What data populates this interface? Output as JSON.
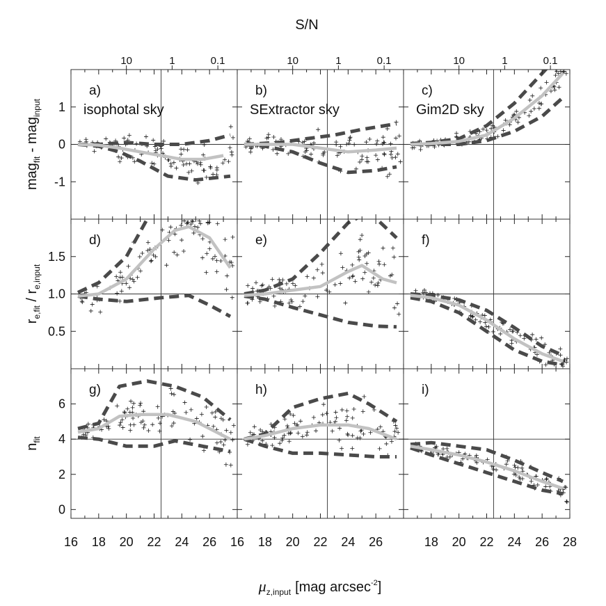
{
  "figure": {
    "top_title": "S/N",
    "xlabel": {
      "mu": "μ",
      "sub": "z,input",
      "unit": "[mag arcsec",
      "sup": "-2",
      "close": "]"
    },
    "ylabels": [
      {
        "a": "mag",
        "a_sub": "fit",
        "mid": " - mag",
        "b_sub": "input"
      },
      {
        "a": "r",
        "a_sub": "e,fit",
        "mid": " / r",
        "b_sub": "e,input"
      },
      {
        "a": "n",
        "a_sub": "fit",
        "mid": "",
        "b_sub": ""
      }
    ],
    "sn_ticks": [
      "10",
      "1",
      "0.1"
    ],
    "bottom_ticks": [
      "16",
      "18",
      "20",
      "22",
      "24",
      "26",
      "16",
      "18",
      "20",
      "22",
      "24",
      "26",
      "28"
    ],
    "row_ticks": [
      [
        "1",
        "0",
        "-1"
      ],
      [
        "1.5",
        "1.0",
        "0.5"
      ],
      [
        "6",
        "4",
        "2",
        "0"
      ]
    ]
  },
  "chart_data": {
    "type": "scatter",
    "layout": "3x3 panel grid, columns share x axis, rows share y axis",
    "x_axis": {
      "label": "μz,input [mag arcsec-2]",
      "range": [
        16,
        28
      ]
    },
    "top_axis": {
      "label": "S/N",
      "log_scale": true,
      "ticks": [
        {
          "value": "10",
          "at_mu": 20
        },
        {
          "value": "1",
          "at_mu": 23.3
        },
        {
          "value": "0.1",
          "at_mu": 26.6
        }
      ]
    },
    "rows": [
      {
        "ylabel": "magfit - maginput",
        "ylim": [
          -2,
          2
        ],
        "reference": 0,
        "yticks": [
          1,
          0,
          -1
        ]
      },
      {
        "ylabel": "re,fit / re,input",
        "ylim": [
          0,
          2
        ],
        "reference": 1,
        "yticks": [
          1.5,
          1.0,
          0.5
        ]
      },
      {
        "ylabel": "nfit",
        "ylim": [
          -0.5,
          8
        ],
        "reference": 4,
        "yticks": [
          6,
          4,
          2,
          0
        ]
      }
    ],
    "vertical_reference_mu": 22.5,
    "panels": [
      {
        "id": "a",
        "label": "a)",
        "caption": "isophotal sky",
        "row": 0,
        "col": 0,
        "median": [
          [
            16.5,
            0.0
          ],
          [
            18,
            -0.02
          ],
          [
            19.5,
            -0.1
          ],
          [
            21,
            -0.2
          ],
          [
            22.5,
            -0.3
          ],
          [
            24,
            -0.4
          ],
          [
            25.5,
            -0.4
          ],
          [
            27,
            -0.3
          ]
        ],
        "upper": [
          [
            16.5,
            0.0
          ],
          [
            18,
            0.0
          ],
          [
            20,
            0.05
          ],
          [
            22,
            0.0
          ],
          [
            24,
            0.0
          ],
          [
            26,
            0.1
          ],
          [
            27.5,
            0.25
          ]
        ],
        "lower": [
          [
            16.5,
            0.0
          ],
          [
            18,
            -0.05
          ],
          [
            19.5,
            -0.2
          ],
          [
            21,
            -0.45
          ],
          [
            23,
            -0.85
          ],
          [
            25,
            -0.95
          ],
          [
            27.5,
            -0.85
          ]
        ],
        "scatter_spread": 0.55,
        "center": [
          [
            16.5,
            0.0
          ],
          [
            27.5,
            -0.35
          ]
        ]
      },
      {
        "id": "b",
        "label": "b)",
        "caption": "SExtractor sky",
        "row": 0,
        "col": 1,
        "median": [
          [
            16.5,
            0.0
          ],
          [
            18,
            0.0
          ],
          [
            20,
            0.0
          ],
          [
            22,
            -0.1
          ],
          [
            24,
            -0.2
          ],
          [
            26,
            -0.15
          ],
          [
            27.5,
            -0.1
          ]
        ],
        "upper": [
          [
            16.5,
            0.0
          ],
          [
            19,
            0.05
          ],
          [
            21,
            0.15
          ],
          [
            23,
            0.25
          ],
          [
            25,
            0.4
          ],
          [
            27.5,
            0.55
          ]
        ],
        "lower": [
          [
            16.5,
            0.0
          ],
          [
            18,
            -0.05
          ],
          [
            20,
            -0.2
          ],
          [
            22,
            -0.5
          ],
          [
            24,
            -0.75
          ],
          [
            26,
            -0.7
          ],
          [
            27.5,
            -0.6
          ]
        ],
        "scatter_spread": 0.55,
        "center": [
          [
            16.5,
            0.0
          ],
          [
            27.5,
            -0.15
          ]
        ]
      },
      {
        "id": "c",
        "label": "c)",
        "caption": "Gim2D sky",
        "row": 0,
        "col": 2,
        "median": [
          [
            16.5,
            0.0
          ],
          [
            18,
            0.02
          ],
          [
            20,
            0.08
          ],
          [
            22,
            0.25
          ],
          [
            24,
            0.7
          ],
          [
            26,
            1.3
          ],
          [
            27.5,
            1.9
          ]
        ],
        "upper": [
          [
            16.5,
            0.02
          ],
          [
            18,
            0.05
          ],
          [
            20,
            0.15
          ],
          [
            22,
            0.5
          ],
          [
            24,
            1.1
          ],
          [
            26,
            1.9
          ],
          [
            27.5,
            2.5
          ]
        ],
        "lower": [
          [
            16.5,
            0.0
          ],
          [
            18,
            0.0
          ],
          [
            20,
            0.0
          ],
          [
            22,
            0.1
          ],
          [
            24,
            0.35
          ],
          [
            26,
            0.75
          ],
          [
            27.5,
            1.25
          ]
        ],
        "scatter_spread": 0.35,
        "center": [
          [
            16.5,
            0.0
          ],
          [
            27.5,
            1.9
          ]
        ]
      },
      {
        "id": "d",
        "label": "d)",
        "caption": "",
        "row": 1,
        "col": 0,
        "median": [
          [
            16.5,
            0.97
          ],
          [
            18,
            1.0
          ],
          [
            20,
            1.2
          ],
          [
            22,
            1.6
          ],
          [
            23.5,
            1.85
          ],
          [
            24.5,
            1.9
          ],
          [
            26,
            1.75
          ],
          [
            27.5,
            1.35
          ]
        ],
        "upper": [
          [
            16.5,
            1.02
          ],
          [
            18,
            1.15
          ],
          [
            20,
            1.5
          ],
          [
            21.5,
            2.0
          ]
        ],
        "lower": [
          [
            16.5,
            0.97
          ],
          [
            18,
            0.93
          ],
          [
            20,
            0.9
          ],
          [
            22.5,
            0.95
          ],
          [
            24.5,
            0.98
          ],
          [
            26,
            0.85
          ],
          [
            27.5,
            0.7
          ]
        ],
        "scatter_spread": 0.45,
        "center": [
          [
            16.5,
            1.0
          ],
          [
            27.5,
            1.45
          ]
        ]
      },
      {
        "id": "e",
        "label": "e)",
        "caption": "",
        "row": 1,
        "col": 1,
        "median": [
          [
            16.5,
            0.98
          ],
          [
            18,
            1.0
          ],
          [
            20,
            1.05
          ],
          [
            22,
            1.1
          ],
          [
            24,
            1.3
          ],
          [
            25,
            1.38
          ],
          [
            26.5,
            1.2
          ],
          [
            27.5,
            1.15
          ]
        ],
        "upper": [
          [
            16.5,
            1.0
          ],
          [
            18,
            1.05
          ],
          [
            20,
            1.2
          ],
          [
            22,
            1.55
          ],
          [
            24,
            1.95
          ],
          [
            25.5,
            2.1
          ],
          [
            27.5,
            1.75
          ]
        ],
        "lower": [
          [
            16.5,
            0.97
          ],
          [
            18,
            0.93
          ],
          [
            20,
            0.82
          ],
          [
            22,
            0.72
          ],
          [
            24,
            0.62
          ],
          [
            26,
            0.57
          ],
          [
            27.5,
            0.56
          ]
        ],
        "scatter_spread": 0.45,
        "center": [
          [
            16.5,
            1.0
          ],
          [
            27.5,
            1.15
          ]
        ]
      },
      {
        "id": "f",
        "label": "f)",
        "caption": "",
        "row": 1,
        "col": 2,
        "median": [
          [
            16.5,
            0.98
          ],
          [
            18,
            0.95
          ],
          [
            20,
            0.85
          ],
          [
            22,
            0.65
          ],
          [
            24,
            0.4
          ],
          [
            26,
            0.2
          ],
          [
            27.5,
            0.1
          ]
        ],
        "upper": [
          [
            16.5,
            1.0
          ],
          [
            18,
            0.98
          ],
          [
            20,
            0.92
          ],
          [
            22,
            0.78
          ],
          [
            24,
            0.55
          ],
          [
            26,
            0.3
          ],
          [
            27.5,
            0.18
          ]
        ],
        "lower": [
          [
            16.5,
            0.95
          ],
          [
            18,
            0.9
          ],
          [
            20,
            0.75
          ],
          [
            22,
            0.5
          ],
          [
            24,
            0.25
          ],
          [
            26,
            0.1
          ],
          [
            27.5,
            0.05
          ]
        ],
        "scatter_spread": 0.18,
        "center": [
          [
            16.5,
            0.98
          ],
          [
            27.5,
            0.08
          ]
        ]
      },
      {
        "id": "g",
        "label": "g)",
        "caption": "",
        "row": 2,
        "col": 0,
        "median": [
          [
            16.5,
            4.4
          ],
          [
            18,
            4.6
          ],
          [
            19.5,
            5.3
          ],
          [
            21,
            5.4
          ],
          [
            23,
            5.4
          ],
          [
            25,
            5.0
          ],
          [
            27.5,
            4.0
          ]
        ],
        "upper": [
          [
            16.5,
            4.6
          ],
          [
            18,
            4.9
          ],
          [
            19.5,
            7.0
          ],
          [
            21.5,
            7.3
          ],
          [
            23.5,
            7.0
          ],
          [
            25.5,
            6.4
          ],
          [
            27.5,
            5.1
          ]
        ],
        "lower": [
          [
            16.5,
            4.1
          ],
          [
            18,
            4.0
          ],
          [
            20,
            3.6
          ],
          [
            22,
            3.6
          ],
          [
            23.5,
            3.9
          ],
          [
            25.5,
            3.6
          ],
          [
            27.5,
            3.3
          ]
        ],
        "scatter_spread": 1.5,
        "center": [
          [
            16.5,
            4.2
          ],
          [
            27.5,
            4.0
          ]
        ]
      },
      {
        "id": "h",
        "label": "h)",
        "caption": "",
        "row": 2,
        "col": 1,
        "median": [
          [
            16.5,
            4.0
          ],
          [
            18,
            4.2
          ],
          [
            20,
            4.6
          ],
          [
            22,
            4.8
          ],
          [
            24,
            4.8
          ],
          [
            25.5,
            4.6
          ],
          [
            27.5,
            4.0
          ]
        ],
        "upper": [
          [
            16.5,
            4.0
          ],
          [
            18,
            4.3
          ],
          [
            20,
            5.8
          ],
          [
            22,
            6.3
          ],
          [
            24,
            6.6
          ],
          [
            25.5,
            6.0
          ],
          [
            27.5,
            5.0
          ]
        ],
        "lower": [
          [
            16.5,
            4.0
          ],
          [
            18,
            3.6
          ],
          [
            20,
            3.2
          ],
          [
            22,
            3.2
          ],
          [
            24,
            3.1
          ],
          [
            26,
            3.0
          ],
          [
            27.5,
            3.0
          ]
        ],
        "scatter_spread": 1.5,
        "center": [
          [
            16.5,
            4.0
          ],
          [
            27.5,
            4.0
          ]
        ]
      },
      {
        "id": "i",
        "label": "i)",
        "caption": "",
        "row": 2,
        "col": 2,
        "median": [
          [
            16.5,
            3.6
          ],
          [
            18,
            3.4
          ],
          [
            20,
            3.1
          ],
          [
            22,
            2.7
          ],
          [
            24,
            2.2
          ],
          [
            26,
            1.6
          ],
          [
            27.5,
            1.2
          ]
        ],
        "upper": [
          [
            16.5,
            3.7
          ],
          [
            18,
            3.8
          ],
          [
            20,
            3.6
          ],
          [
            22,
            3.4
          ],
          [
            24,
            2.8
          ],
          [
            26,
            2.1
          ],
          [
            27.5,
            1.6
          ]
        ],
        "lower": [
          [
            16.5,
            3.5
          ],
          [
            18,
            3.1
          ],
          [
            20,
            2.6
          ],
          [
            22,
            2.1
          ],
          [
            24,
            1.6
          ],
          [
            26,
            1.1
          ],
          [
            27.5,
            0.9
          ]
        ],
        "scatter_spread": 0.5,
        "center": [
          [
            16.5,
            3.6
          ],
          [
            27.5,
            1.1
          ]
        ]
      }
    ],
    "series": [
      {
        "style": "light gray solid",
        "role": "median"
      },
      {
        "style": "dark gray dashed",
        "role": "upper envelope"
      },
      {
        "style": "dark gray dashed",
        "role": "lower envelope"
      },
      {
        "style": "black plus markers",
        "role": "individual galaxies"
      }
    ],
    "colors": {
      "median": "#c2c2c2",
      "envelope": "#4a4a4a",
      "points": "#1a1a1a",
      "frame": "#333333"
    }
  }
}
